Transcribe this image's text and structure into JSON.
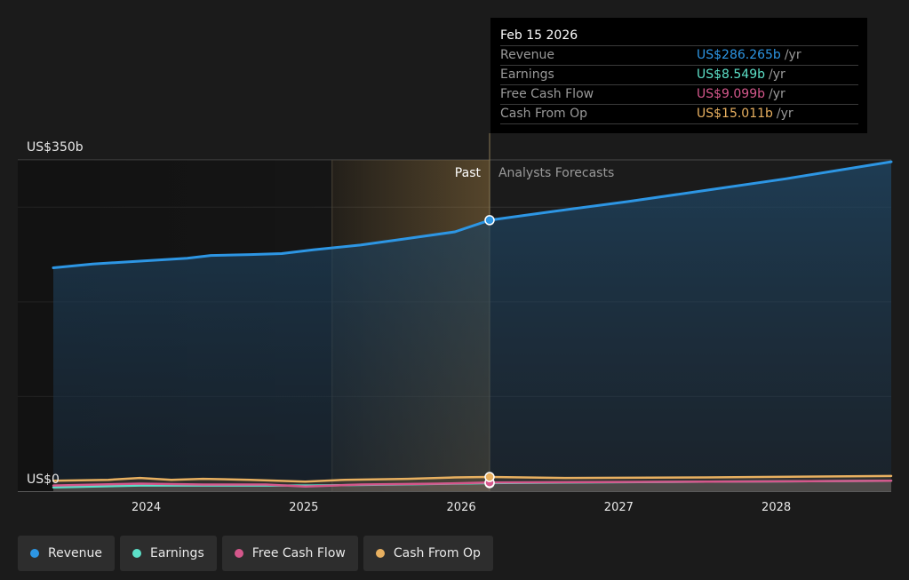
{
  "chart_data": {
    "type": "area",
    "y_label_top": "US$350b",
    "y_label_bottom": "US$0",
    "ylim": [
      0,
      350
    ],
    "xlim": [
      2023.35,
      2028.67
    ],
    "x_ticks": [
      {
        "value": 2023.94,
        "label": "2024"
      },
      {
        "value": 2024.94,
        "label": "2025"
      },
      {
        "value": 2025.94,
        "label": "2026"
      },
      {
        "value": 2026.94,
        "label": "2027"
      },
      {
        "value": 2027.94,
        "label": "2028"
      }
    ],
    "past_label": "Past",
    "forecast_label": "Analysts Forecasts",
    "divider_x": 2026.12,
    "forecast_highlight_start": 2025.12,
    "series": [
      {
        "name": "Revenue",
        "color": "#2d96e4",
        "points": [
          [
            2023.35,
            236
          ],
          [
            2023.6,
            240
          ],
          [
            2023.9,
            243
          ],
          [
            2024.2,
            246
          ],
          [
            2024.35,
            249
          ],
          [
            2024.6,
            250
          ],
          [
            2024.8,
            251
          ],
          [
            2025.0,
            255
          ],
          [
            2025.3,
            260
          ],
          [
            2025.6,
            267
          ],
          [
            2025.9,
            274
          ],
          [
            2026.12,
            286.3
          ],
          [
            2026.5,
            295
          ],
          [
            2027.0,
            306
          ],
          [
            2027.5,
            318
          ],
          [
            2028.0,
            330
          ],
          [
            2028.67,
            348
          ]
        ]
      },
      {
        "name": "Earnings",
        "color": "#5ce0c8",
        "points": [
          [
            2023.35,
            4
          ],
          [
            2023.9,
            6
          ],
          [
            2024.5,
            6
          ],
          [
            2025.0,
            6
          ],
          [
            2025.5,
            7
          ],
          [
            2026.12,
            8.5
          ],
          [
            2026.5,
            9
          ],
          [
            2027.5,
            10
          ],
          [
            2028.67,
            11
          ]
        ]
      },
      {
        "name": "Free Cash Flow",
        "color": "#d4578b",
        "points": [
          [
            2023.35,
            6
          ],
          [
            2023.9,
            8
          ],
          [
            2024.3,
            7
          ],
          [
            2024.7,
            7
          ],
          [
            2024.95,
            5
          ],
          [
            2025.3,
            7
          ],
          [
            2025.8,
            8
          ],
          [
            2026.12,
            9.1
          ],
          [
            2026.6,
            9.5
          ],
          [
            2027.5,
            10
          ],
          [
            2028.67,
            11
          ]
        ]
      },
      {
        "name": "Cash From Op",
        "color": "#e8b060",
        "points": [
          [
            2023.35,
            11
          ],
          [
            2023.7,
            12
          ],
          [
            2023.9,
            14
          ],
          [
            2024.1,
            12
          ],
          [
            2024.3,
            13
          ],
          [
            2024.6,
            12
          ],
          [
            2024.95,
            10
          ],
          [
            2025.2,
            12
          ],
          [
            2025.6,
            13
          ],
          [
            2025.9,
            14.5
          ],
          [
            2026.12,
            15.0
          ],
          [
            2026.6,
            14
          ],
          [
            2027.5,
            14.5
          ],
          [
            2028.67,
            16
          ]
        ]
      }
    ],
    "highlight_date": 2026.12
  },
  "tooltip": {
    "date": "Feb 15 2026",
    "rows": [
      {
        "label": "Revenue",
        "value": "US$286.265b",
        "unit": "/yr",
        "color": "#2d96e4"
      },
      {
        "label": "Earnings",
        "value": "US$8.549b",
        "unit": "/yr",
        "color": "#5ce0c8"
      },
      {
        "label": "Free Cash Flow",
        "value": "US$9.099b",
        "unit": "/yr",
        "color": "#d4578b"
      },
      {
        "label": "Cash From Op",
        "value": "US$15.011b",
        "unit": "/yr",
        "color": "#e8b060"
      }
    ]
  },
  "legend": [
    {
      "label": "Revenue",
      "color": "#2d96e4"
    },
    {
      "label": "Earnings",
      "color": "#5ce0c8"
    },
    {
      "label": "Free Cash Flow",
      "color": "#d4578b"
    },
    {
      "label": "Cash From Op",
      "color": "#e8b060"
    }
  ]
}
